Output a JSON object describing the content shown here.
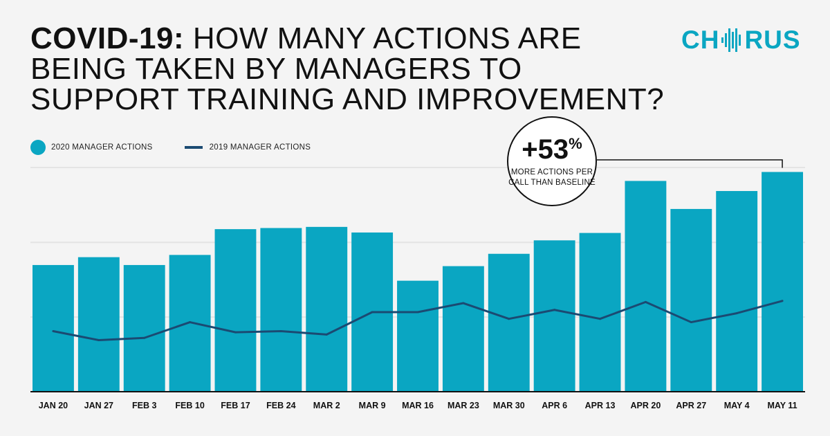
{
  "header": {
    "title_bold": "COVID-19:",
    "title_rest": "HOW MANY ACTIONS ARE BEING TAKEN BY MANAGERS TO SUPPORT TRAINING AND IMPROVEMENT?"
  },
  "logo": {
    "left": "CH",
    "right": "RUS",
    "icon": "sound-wave-icon",
    "color": "#0aa6c2"
  },
  "legend": {
    "bars_label": "2020 MANAGER ACTIONS",
    "line_label": "2019 MANAGER ACTIONS"
  },
  "callout": {
    "value": "+53",
    "unit": "%",
    "text": "MORE ACTIONS PER CALL THAN BASELINE"
  },
  "colors": {
    "bar": "#0aa6c2",
    "line": "#1b4a72",
    "grid": "#e4e4e4",
    "background": "#f4f4f4"
  },
  "chart_data": {
    "type": "bar",
    "title": "COVID-19: HOW MANY ACTIONS ARE BEING TAKEN BY MANAGERS TO SUPPORT TRAINING AND IMPROVEMENT?",
    "xlabel": "",
    "ylabel": "",
    "ylim": [
      0,
      100
    ],
    "grid": true,
    "categories": [
      "JAN 20",
      "JAN 27",
      "FEB 3",
      "FEB 10",
      "FEB 17",
      "FEB 24",
      "MAR 2",
      "MAR 9",
      "MAR 16",
      "MAR 23",
      "MAR 30",
      "APR 6",
      "APR 13",
      "APR 20",
      "APR 27",
      "MAY 4",
      "MAY 11"
    ],
    "series": [
      {
        "name": "2020 MANAGER ACTIONS",
        "type": "bar",
        "values": [
          56.5,
          60,
          56.5,
          61,
          72.5,
          73,
          73.5,
          71,
          49.5,
          56,
          61.5,
          67.5,
          70.8,
          94,
          81.5,
          89.5,
          98
        ]
      },
      {
        "name": "2019 MANAGER ACTIONS",
        "type": "line",
        "values": [
          27,
          23,
          24,
          31,
          26.5,
          27,
          25.5,
          35.5,
          35.5,
          39.5,
          32.5,
          36.5,
          32.5,
          40,
          31,
          35,
          40.5
        ]
      }
    ],
    "annotations": [
      {
        "text": "+53% MORE ACTIONS PER CALL THAN BASELINE",
        "target": "MAY 11"
      }
    ]
  }
}
